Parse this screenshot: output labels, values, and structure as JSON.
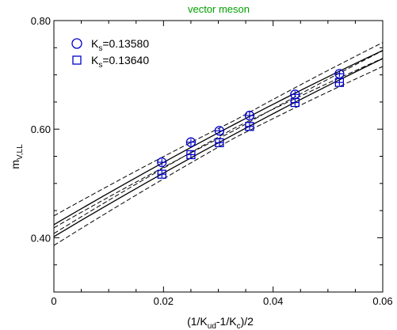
{
  "chart_data": {
    "type": "scatter",
    "title": "vector meson",
    "title_color": "#00A000",
    "xlabel": {
      "base": "(1/K",
      "sub1": "ud",
      "mid": "-1/K",
      "sub2": "c",
      "tail": ")/2"
    },
    "ylabel": {
      "base": "m",
      "sub": "V,LL"
    },
    "xlim": [
      0,
      0.06
    ],
    "ylim": [
      0.3,
      0.8
    ],
    "x_ticks": [
      {
        "value": 0,
        "label": "0"
      },
      {
        "value": 0.02,
        "label": "0.02"
      },
      {
        "value": 0.04,
        "label": "0.04"
      },
      {
        "value": 0.06,
        "label": "0.06"
      }
    ],
    "y_ticks": [
      {
        "value": 0.4,
        "label": "0.40"
      },
      {
        "value": 0.6,
        "label": "0.60"
      },
      {
        "value": 0.8,
        "label": "0.80"
      }
    ],
    "grid": false,
    "legend_position": "top-left",
    "marker_color": "#0000CC",
    "series": [
      {
        "name_base": "K",
        "name_sub": "s",
        "name_rest": "=0.13580",
        "marker": "circle",
        "x": [
          0.0197,
          0.025,
          0.0302,
          0.0357,
          0.044,
          0.0521
        ],
        "y": [
          0.539,
          0.576,
          0.597,
          0.625,
          0.664,
          0.702
        ],
        "err": [
          0.006,
          0.006,
          0.006,
          0.006,
          0.006,
          0.006
        ],
        "fit_x": [
          0,
          0.06
        ],
        "fit_y": [
          0.424,
          0.745
        ],
        "band": 0.007
      },
      {
        "name_base": "K",
        "name_sub": "s",
        "name_rest": "=0.13640",
        "marker": "square",
        "x": [
          0.0197,
          0.025,
          0.0302,
          0.0357,
          0.044,
          0.0521
        ],
        "y": [
          0.517,
          0.553,
          0.575,
          0.605,
          0.649,
          0.686
        ],
        "err": [
          0.006,
          0.006,
          0.006,
          0.006,
          0.006,
          0.006
        ],
        "fit_x": [
          0,
          0.06
        ],
        "fit_y": [
          0.402,
          0.73
        ],
        "band": 0.007
      }
    ]
  }
}
